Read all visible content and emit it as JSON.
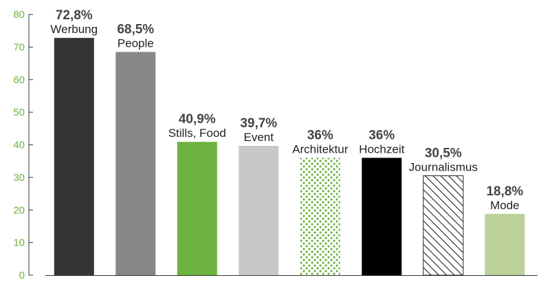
{
  "chart_data": {
    "type": "bar",
    "title": "",
    "xlabel": "",
    "ylabel": "",
    "ylim": [
      0,
      80
    ],
    "yticks": [
      0,
      10,
      20,
      30,
      40,
      50,
      60,
      70,
      80
    ],
    "grid": false,
    "categories": [
      "Werbung",
      "People",
      "Stills, Food",
      "Event",
      "Architektur",
      "Hochzeit",
      "Journalismus",
      "Mode"
    ],
    "values": [
      72.8,
      68.5,
      40.9,
      39.7,
      36,
      36,
      30.5,
      18.8
    ],
    "value_labels": [
      "72,8%",
      "68,5%",
      "40,9%",
      "39,7%",
      "36%",
      "36%",
      "30,5%",
      "18,8%"
    ],
    "bar_styles": [
      {
        "fill": "#353535",
        "pattern": "solid"
      },
      {
        "fill": "#888888",
        "pattern": "solid"
      },
      {
        "fill": "#6db33f",
        "pattern": "solid"
      },
      {
        "fill": "#c8c8c8",
        "pattern": "solid"
      },
      {
        "fill": "#6db33f",
        "pattern": "dots"
      },
      {
        "fill": "#000000",
        "pattern": "solid"
      },
      {
        "fill": "#222222",
        "pattern": "hatch"
      },
      {
        "fill": "#bcd19a",
        "pattern": "solid"
      }
    ],
    "colors": {
      "axis": "#333333",
      "tick_label": "#6db33f"
    }
  }
}
